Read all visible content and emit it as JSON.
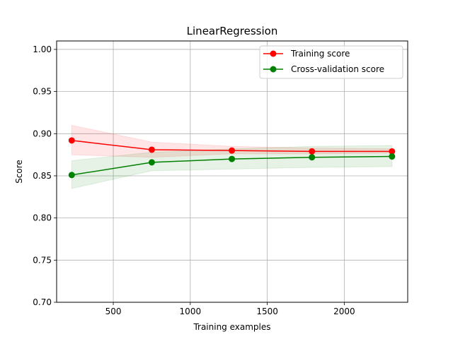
{
  "chart_data": {
    "type": "line",
    "title": "LinearRegression",
    "xlabel": "Training examples",
    "ylabel": "Score",
    "xlim": [
      132,
      2412
    ],
    "ylim": [
      0.7,
      1.01
    ],
    "grid": true,
    "legend_position": "upper-right",
    "x": [
      230,
      750,
      1270,
      1790,
      2310
    ],
    "x_ticks": [
      500,
      1000,
      1500,
      2000
    ],
    "x_tick_labels": [
      "500",
      "1000",
      "1500",
      "2000"
    ],
    "y_ticks": [
      0.7,
      0.75,
      0.8,
      0.85,
      0.9,
      0.95,
      1.0
    ],
    "y_tick_labels": [
      "0.70",
      "0.75",
      "0.80",
      "0.85",
      "0.90",
      "0.95",
      "1.00"
    ],
    "series": [
      {
        "name": "Training score",
        "color": "#ff0000",
        "values": [
          0.892,
          0.881,
          0.88,
          0.879,
          0.879
        ],
        "band_lower": [
          0.875,
          0.872,
          0.876,
          0.876,
          0.877
        ],
        "band_upper": [
          0.91,
          0.89,
          0.885,
          0.883,
          0.882
        ]
      },
      {
        "name": "Cross-validation score",
        "color": "#008000",
        "values": [
          0.851,
          0.866,
          0.87,
          0.872,
          0.873
        ],
        "band_lower": [
          0.835,
          0.856,
          0.858,
          0.86,
          0.861
        ],
        "band_upper": [
          0.868,
          0.878,
          0.882,
          0.885,
          0.886
        ]
      }
    ]
  }
}
